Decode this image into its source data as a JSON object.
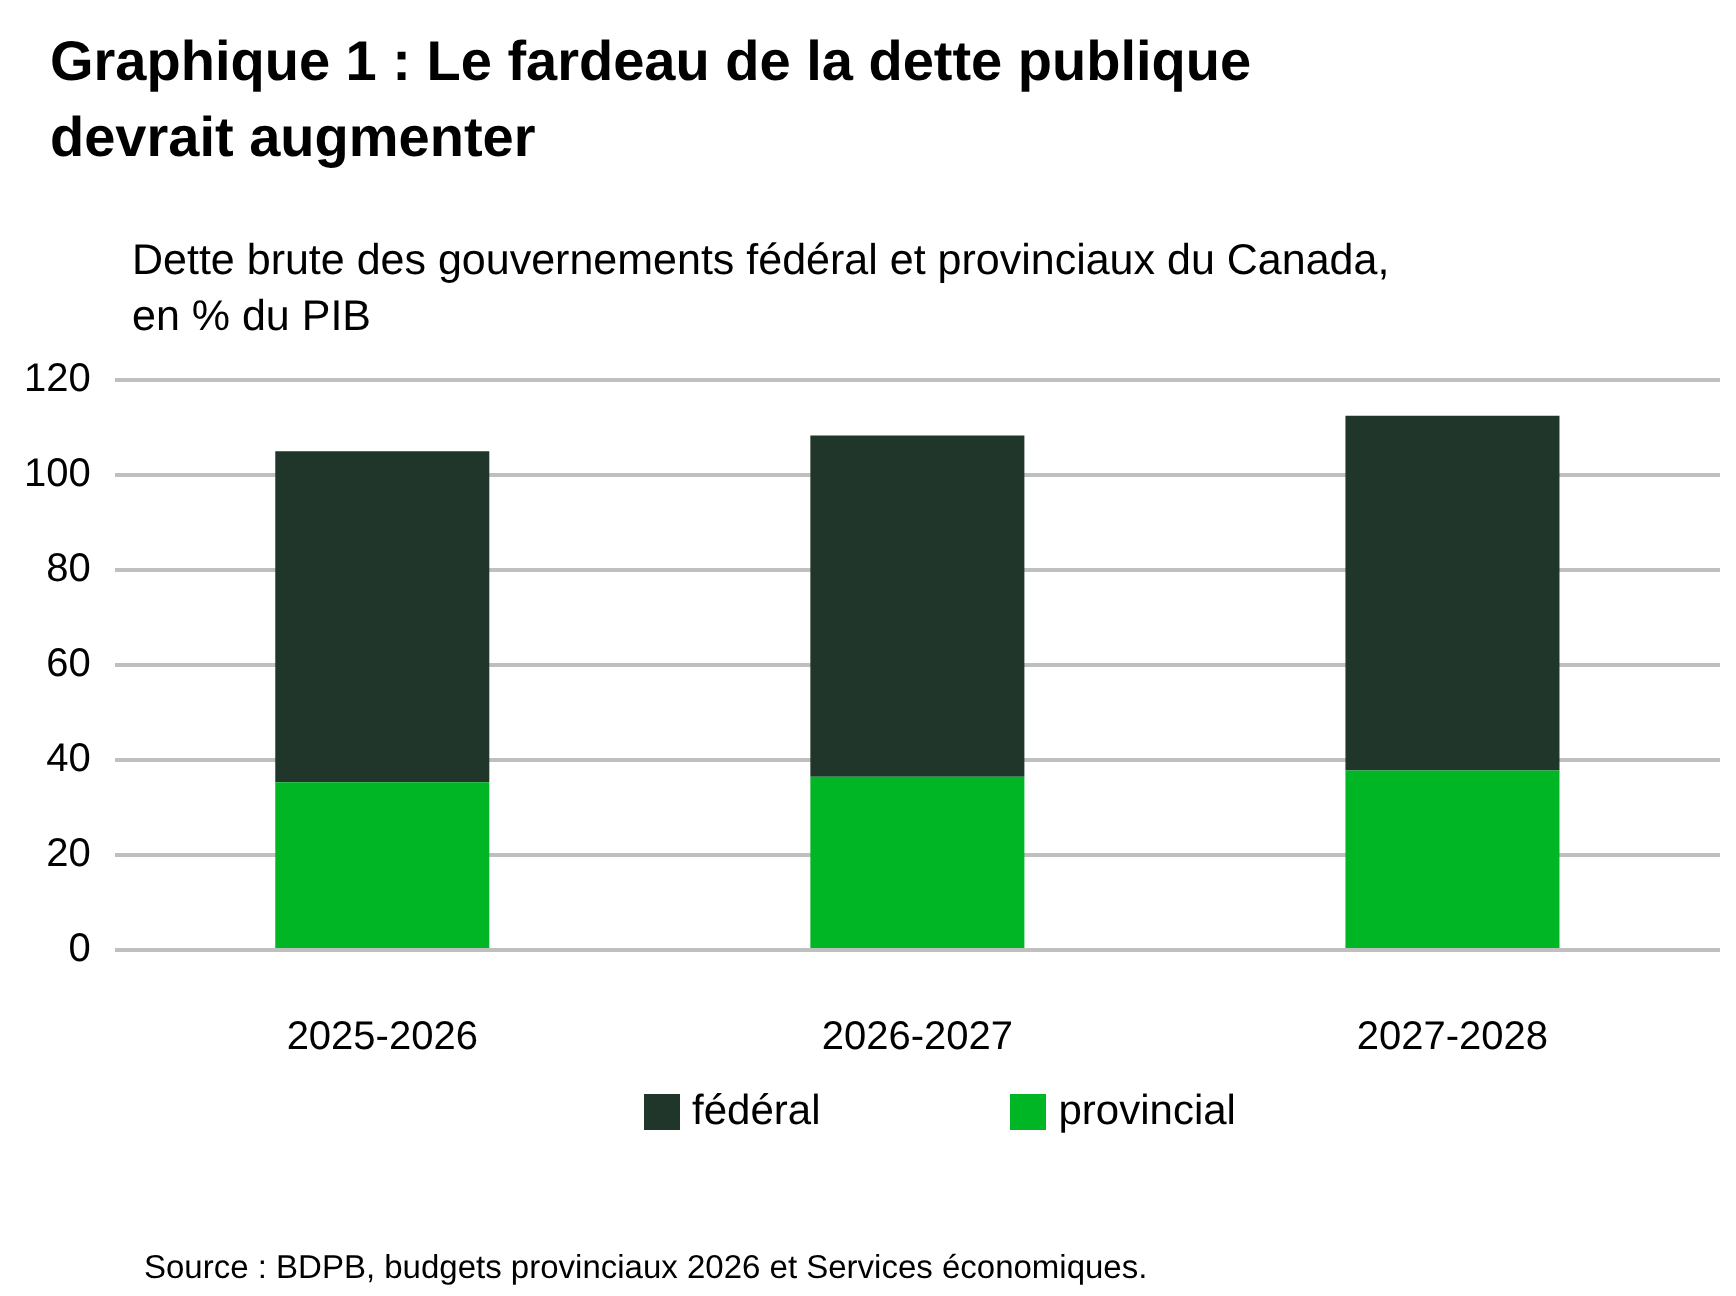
{
  "chart_data": {
    "type": "bar",
    "title": "Graphique 1 : Le fardeau de la dette publique devrait augmenter",
    "subtitle": "Dette brute des gouvernements fédéral et provinciaux du Canada, en % du PIB",
    "categories": [
      "2025-2026",
      "2026-2027",
      "2027-2028"
    ],
    "series": [
      {
        "name": "provincial",
        "color": "#00b624",
        "values": [
          35.3,
          36.5,
          37.8
        ]
      },
      {
        "name": "fédéral",
        "color": "#21362a",
        "values": [
          69.7,
          71.8,
          74.7
        ]
      }
    ],
    "stacked": true,
    "ylim": [
      0,
      120
    ],
    "yticks": [
      0,
      20,
      40,
      60,
      80,
      100,
      120
    ],
    "grid": "y",
    "legend": "bottom",
    "annotations": [
      "Source : BDPB, budgets provinciaux 2026 et Services économiques."
    ]
  }
}
